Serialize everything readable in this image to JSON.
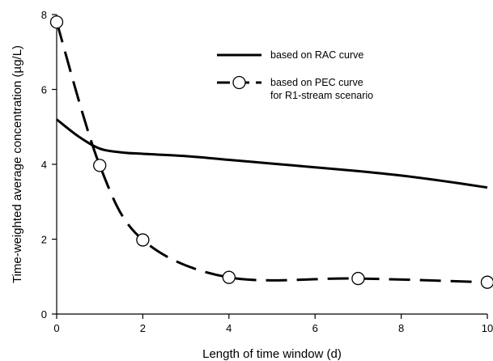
{
  "chart_data": {
    "type": "line",
    "xlabel": "Length of time window (d)",
    "ylabel": "Time-weighted average concentration (µg/L)",
    "xlim": [
      0,
      10
    ],
    "ylim": [
      0,
      8
    ],
    "xticks": [
      0,
      2,
      4,
      6,
      8,
      10
    ],
    "yticks": [
      0,
      2,
      4,
      6,
      8
    ],
    "grid": false,
    "legend_position": "top-right",
    "series": [
      {
        "name": "based on RAC curve",
        "style": "solid",
        "markers": false,
        "color": "#000000",
        "x": [
          0,
          0.5,
          1,
          1.5,
          2,
          3,
          4,
          5,
          6,
          7,
          8,
          9,
          10
        ],
        "y": [
          5.2,
          4.75,
          4.42,
          4.32,
          4.28,
          4.22,
          4.12,
          4.02,
          3.92,
          3.82,
          3.7,
          3.55,
          3.38
        ]
      },
      {
        "name": "based on PEC curve\nfor R1-stream scenario",
        "legend_lines": [
          "based on PEC curve",
          "for R1-stream scenario"
        ],
        "style": "dashed",
        "markers": true,
        "color": "#000000",
        "x": [
          0,
          1,
          2,
          4,
          7,
          10
        ],
        "y": [
          7.8,
          3.97,
          1.98,
          0.98,
          0.95,
          0.85
        ]
      }
    ]
  }
}
